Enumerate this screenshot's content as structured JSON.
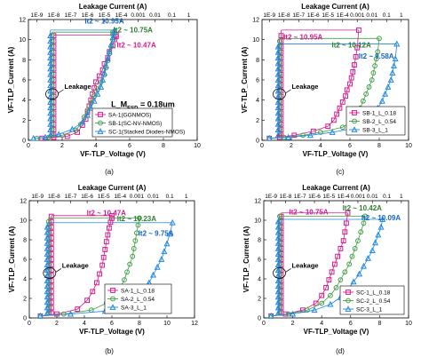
{
  "chart_data": [
    {
      "type": "scatter",
      "caption": "(a)",
      "xlabel": "VF-TLP_Voltage (V)",
      "ylabel": "VF-TLP_Current (A)",
      "top_xlabel": "Leakage Current (A)",
      "xlim": [
        0,
        10
      ],
      "ylim": [
        0,
        12
      ],
      "xticks": [
        "0",
        "2",
        "4",
        "6",
        "8",
        "10"
      ],
      "yticks": [
        "0",
        "2",
        "4",
        "6",
        "8",
        "10",
        "12"
      ],
      "top_ticks": [
        "1E-9",
        "1E-8",
        "1E-7",
        "1E-6",
        "1E-5",
        "1E-4",
        "0.001",
        "0.01",
        "0.1",
        "1"
      ],
      "leakage_label": "Leakage",
      "param_label": "L_M",
      "param_sub": "ESD",
      "param_value": " = 0.18um",
      "annotations": [
        {
          "text": "It2 ~ 10.95A",
          "color": "#1565c0",
          "x": 4.5,
          "y": 11.6
        },
        {
          "text": "It2 ~ 10.75A",
          "color": "#2e7d32",
          "x": 6.2,
          "y": 10.7
        },
        {
          "text": "It2 ~ 10.47A",
          "color": "#d81b8c",
          "x": 6.4,
          "y": 9.2
        }
      ],
      "legend": [
        "SA-1(GGNMOS)",
        "SB-1(SC-NV-NMOS)",
        "SC-1(Stacked Diodes-NMOS)"
      ],
      "series": [
        {
          "name": "SA-1(GGNMOS)",
          "color": "#d81b8c",
          "marker": "square",
          "x": [
            0.8,
            1.5,
            2.3,
            2.9,
            3.2,
            3.4,
            3.5,
            3.6,
            3.7,
            3.8,
            3.9,
            4.0,
            4.2,
            4.4,
            4.5,
            4.7,
            4.8,
            5.0,
            5.1,
            5.2,
            5.2
          ],
          "y": [
            0.2,
            0.3,
            0.4,
            0.8,
            1.5,
            2.1,
            2.8,
            3.4,
            4.0,
            4.6,
            5.2,
            5.8,
            6.4,
            7.0,
            7.6,
            8.2,
            8.8,
            9.4,
            10.0,
            10.3,
            10.47
          ],
          "leak_x": 1.5
        },
        {
          "name": "SB-1(SC-NV-NMOS)",
          "color": "#43a047",
          "marker": "circle",
          "x": [
            0.5,
            1.2,
            2.0,
            2.8,
            3.1,
            3.3,
            3.5,
            3.7,
            3.9,
            4.1,
            4.3,
            4.5,
            4.6,
            4.7,
            4.8,
            4.9,
            5.0,
            5.0,
            5.0
          ],
          "y": [
            0.2,
            0.3,
            0.5,
            1.0,
            1.6,
            2.3,
            3.0,
            3.7,
            4.4,
            5.1,
            5.8,
            6.5,
            7.2,
            7.9,
            8.6,
            9.3,
            10.0,
            10.5,
            10.75
          ],
          "leak_x": 1.4
        },
        {
          "name": "SC-1(Stacked Diodes-NMOS)",
          "color": "#1e88e5",
          "marker": "triangle",
          "x": [
            0.3,
            1.0,
            1.8,
            2.6,
            3.2,
            3.5,
            3.7,
            3.9,
            4.1,
            4.3,
            4.4,
            4.5,
            4.6,
            4.7,
            4.8,
            4.9,
            5.0,
            5.1,
            5.1
          ],
          "y": [
            0.2,
            0.3,
            0.6,
            1.1,
            1.8,
            2.5,
            3.2,
            3.9,
            4.6,
            5.3,
            6.0,
            6.7,
            7.4,
            8.1,
            8.8,
            9.5,
            10.2,
            10.7,
            10.95
          ],
          "leak_x": 1.3
        }
      ]
    },
    {
      "type": "scatter",
      "caption": "(c)",
      "xlabel": "VF-TLP_Voltage (V)",
      "ylabel": "VF-TLP_Current (A)",
      "top_xlabel": "Leakage Current (A)",
      "xlim": [
        0,
        10
      ],
      "ylim": [
        0,
        12
      ],
      "xticks": [
        "0",
        "2",
        "4",
        "6",
        "8",
        "10"
      ],
      "yticks": [
        "0",
        "2",
        "4",
        "6",
        "8",
        "10",
        "12"
      ],
      "top_ticks": [
        "1E-9",
        "1E-8",
        "1E-7",
        "1E-6",
        "1E-5",
        "1E-4",
        "0.001",
        "0.01",
        "0.1",
        "1"
      ],
      "leakage_label": "Leakage",
      "annotations": [
        {
          "text": "It2 ~ 10.95A",
          "color": "#d81b8c",
          "x": 2.8,
          "y": 10.0
        },
        {
          "text": "It2 ~ 10.12A",
          "color": "#2e7d32",
          "x": 6.1,
          "y": 9.2
        },
        {
          "text": "It2 ~ 9.58A",
          "color": "#1565c0",
          "x": 7.8,
          "y": 8.1
        }
      ],
      "legend": [
        "SB-1_L_0.18",
        "SB-2_L_0.54",
        "SB-3_L_1"
      ],
      "series": [
        {
          "name": "SB-1_L_0.18",
          "color": "#d81b8c",
          "marker": "square",
          "x": [
            0.5,
            1.2,
            2.2,
            3.5,
            4.5,
            4.9,
            5.1,
            5.3,
            5.5,
            5.7,
            5.8,
            6.0,
            6.1,
            6.2,
            6.3,
            6.4,
            6.5,
            6.6
          ],
          "y": [
            0.2,
            0.3,
            0.5,
            0.9,
            1.4,
            2.0,
            2.6,
            3.2,
            3.8,
            4.4,
            5.0,
            5.6,
            6.2,
            6.8,
            7.5,
            8.3,
            9.2,
            10.95
          ],
          "leak_x": 1.3
        },
        {
          "name": "SB-2_L_0.54",
          "color": "#43a047",
          "marker": "circle",
          "x": [
            0.5,
            1.5,
            2.8,
            4.0,
            5.5,
            6.2,
            6.5,
            6.7,
            6.9,
            7.1,
            7.3,
            7.5,
            7.6,
            7.7,
            7.8,
            7.9,
            8.0
          ],
          "y": [
            0.2,
            0.3,
            0.5,
            0.8,
            1.3,
            1.9,
            2.5,
            3.2,
            3.9,
            4.6,
            5.3,
            6.0,
            6.7,
            7.4,
            8.1,
            8.8,
            10.12
          ],
          "leak_x": 1.2
        },
        {
          "name": "SB-3_L_1",
          "color": "#1e88e5",
          "marker": "triangle",
          "x": [
            0.5,
            1.8,
            3.3,
            4.8,
            6.3,
            7.2,
            7.6,
            7.9,
            8.2,
            8.4,
            8.6,
            8.8,
            8.9,
            9.0,
            9.1,
            9.2
          ],
          "y": [
            0.2,
            0.3,
            0.5,
            0.8,
            1.2,
            1.8,
            2.5,
            3.2,
            3.9,
            4.6,
            5.3,
            6.0,
            6.7,
            7.4,
            8.1,
            9.58
          ],
          "leak_x": 1.1
        }
      ]
    },
    {
      "type": "scatter",
      "caption": "(b)",
      "xlabel": "VF-TLP_Voltage (V)",
      "ylabel": "VF-TLP_Current (A)",
      "top_xlabel": "Leakage Current (A)",
      "xlim": [
        0,
        12
      ],
      "ylim": [
        0,
        12
      ],
      "xticks": [
        "0",
        "2",
        "4",
        "6",
        "8",
        "10",
        "12"
      ],
      "yticks": [
        "0",
        "2",
        "4",
        "6",
        "8",
        "10",
        "12"
      ],
      "top_ticks": [
        "1E-9",
        "1E-8",
        "1E-7",
        "1E-6",
        "1E-5",
        "1E-4",
        "0.001",
        "0.01",
        "0.1",
        "1"
      ],
      "leakage_label": "Leakage",
      "annotations": [
        {
          "text": "It2 ~ 10.47A",
          "color": "#d81b8c",
          "x": 5.6,
          "y": 10.5
        },
        {
          "text": "It2 ~ 10.23A",
          "color": "#2e7d32",
          "x": 7.8,
          "y": 9.9
        },
        {
          "text": "It2 ~ 9.75A",
          "color": "#1565c0",
          "x": 9.2,
          "y": 8.4
        }
      ],
      "legend": [
        "SA-1_L_0.18",
        "SA-2_L_0.54",
        "SA-3_L_1"
      ],
      "series": [
        {
          "name": "SA-1_L_0.18",
          "color": "#d81b8c",
          "marker": "square",
          "x": [
            0.8,
            2.0,
            3.5,
            4.2,
            4.6,
            4.9,
            5.1,
            5.3,
            5.4,
            5.5,
            5.6,
            5.7,
            5.8,
            5.9,
            6.0,
            6.0
          ],
          "y": [
            0.2,
            0.4,
            0.9,
            1.8,
            2.7,
            3.6,
            4.5,
            5.4,
            6.2,
            7.0,
            7.8,
            8.5,
            9.2,
            9.8,
            10.2,
            10.47
          ],
          "leak_x": 1.6
        },
        {
          "name": "SA-2_L_0.54",
          "color": "#43a047",
          "marker": "circle",
          "x": [
            0.8,
            2.5,
            4.5,
            5.6,
            6.2,
            6.6,
            6.9,
            7.1,
            7.3,
            7.5,
            7.6,
            7.7,
            7.8,
            7.9,
            8.0
          ],
          "y": [
            0.2,
            0.4,
            0.8,
            1.5,
            2.3,
            3.1,
            3.9,
            4.7,
            5.5,
            6.3,
            7.1,
            7.9,
            8.7,
            9.5,
            10.23
          ],
          "leak_x": 1.4
        },
        {
          "name": "SA-3_L_1",
          "color": "#1e88e5",
          "marker": "triangle",
          "x": [
            0.8,
            3.0,
            5.5,
            7.0,
            7.8,
            8.3,
            8.7,
            9.0,
            9.3,
            9.6,
            9.8,
            10.0,
            10.2,
            10.4
          ],
          "y": [
            0.2,
            0.4,
            0.7,
            1.3,
            2.0,
            2.8,
            3.6,
            4.4,
            5.2,
            6.0,
            6.8,
            7.6,
            8.6,
            9.75
          ],
          "leak_x": 1.3
        }
      ]
    },
    {
      "type": "scatter",
      "caption": "(d)",
      "xlabel": "VF-TLP_Voltage (V)",
      "ylabel": "VF-TLP_Current (A)",
      "top_xlabel": "Leakage Current (A)",
      "xlim": [
        0,
        10
      ],
      "ylim": [
        0,
        12
      ],
      "xticks": [
        "0",
        "2",
        "4",
        "6",
        "8",
        "10"
      ],
      "yticks": [
        "0",
        "2",
        "4",
        "6",
        "8",
        "10",
        "12"
      ],
      "top_ticks": [
        "1E-9",
        "1E-8",
        "1E-7",
        "1E-6",
        "1E-5",
        "1E-4",
        "0.001",
        "0.01",
        "0.1",
        "1"
      ],
      "leakage_label": "Leakage",
      "annotations": [
        {
          "text": "It2 ~ 10.75A",
          "color": "#d81b8c",
          "x": 3.1,
          "y": 10.6
        },
        {
          "text": "It2 ~ 10.42A",
          "color": "#2e7d32",
          "x": 6.8,
          "y": 11.0
        },
        {
          "text": "It2 ~ 10.09A",
          "color": "#1565c0",
          "x": 8.1,
          "y": 10.0
        }
      ],
      "legend": [
        "SC-1_L_0.18",
        "SC-2_L_0.54",
        "SC-3_L_1"
      ],
      "series": [
        {
          "name": "SC-1_L_0.18",
          "color": "#d81b8c",
          "marker": "square",
          "x": [
            0.5,
            1.5,
            2.7,
            3.6,
            4.0,
            4.3,
            4.5,
            4.7,
            4.9,
            5.1,
            5.3,
            5.5,
            5.6,
            5.7,
            5.8
          ],
          "y": [
            0.2,
            0.4,
            0.8,
            1.5,
            2.3,
            3.1,
            3.9,
            4.7,
            5.5,
            6.3,
            7.1,
            7.9,
            8.8,
            9.7,
            10.75
          ],
          "leak_x": 1.2
        },
        {
          "name": "SC-2_L_0.54",
          "color": "#43a047",
          "marker": "circle",
          "x": [
            0.5,
            1.7,
            3.0,
            4.0,
            4.6,
            5.0,
            5.3,
            5.6,
            5.9,
            6.1,
            6.3,
            6.5,
            6.7,
            6.9,
            7.0
          ],
          "y": [
            0.2,
            0.4,
            0.8,
            1.5,
            2.3,
            3.1,
            3.9,
            4.7,
            5.5,
            6.3,
            7.1,
            7.9,
            8.8,
            9.7,
            10.42
          ],
          "leak_x": 1.1
        },
        {
          "name": "SC-3_L_1",
          "color": "#1e88e5",
          "marker": "triangle",
          "x": [
            0.5,
            2.0,
            3.5,
            4.6,
            5.3,
            5.8,
            6.2,
            6.6,
            6.9,
            7.2,
            7.5,
            7.7,
            7.9,
            8.1,
            8.2
          ],
          "y": [
            0.2,
            0.4,
            0.8,
            1.4,
            2.1,
            2.9,
            3.7,
            4.5,
            5.3,
            6.1,
            6.9,
            7.7,
            8.5,
            9.3,
            10.09
          ],
          "leak_x": 1.0
        }
      ]
    }
  ]
}
